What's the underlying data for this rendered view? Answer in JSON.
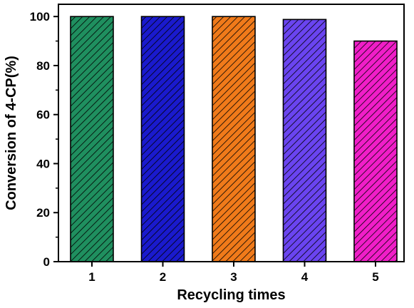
{
  "chart_data": {
    "type": "bar",
    "categories": [
      "1",
      "2",
      "3",
      "4",
      "5"
    ],
    "values": [
      100,
      100,
      100,
      98.8,
      90
    ],
    "colors": [
      "#1f8f5f",
      "#1a1acd",
      "#f07a1a",
      "#6a44f0",
      "#f01ec8"
    ],
    "pattern": "diagonal-hatch",
    "xlabel": "Recycling times",
    "ylabel": "Conversion of 4-CP(%)",
    "ylim": [
      0,
      105
    ],
    "yticks": [
      "0",
      "20",
      "40",
      "60",
      "80",
      "100"
    ],
    "grid": false,
    "legend": "none"
  }
}
